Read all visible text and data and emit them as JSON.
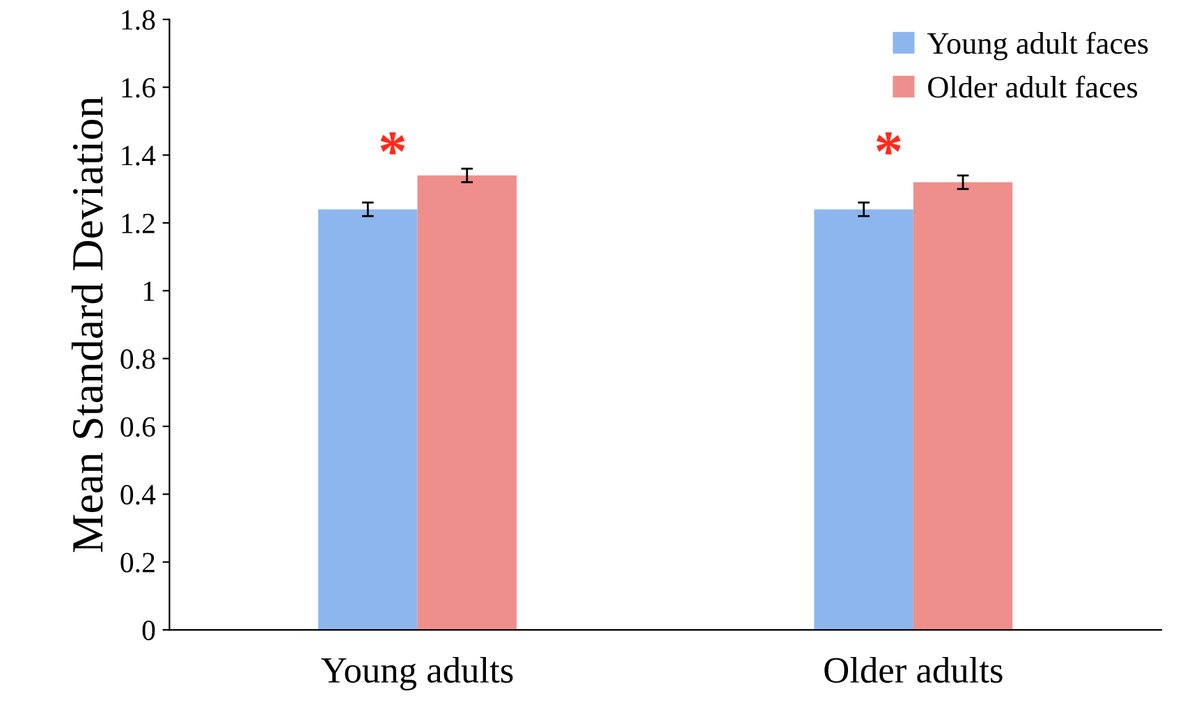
{
  "chart_data": {
    "type": "bar",
    "ylabel": "Mean Standard Deviation",
    "categories": [
      "Young adults",
      "Older adults"
    ],
    "series": [
      {
        "name": "Young adult faces",
        "color": "#8db6ee",
        "values": [
          1.24,
          1.24
        ],
        "errors": [
          0.02,
          0.02
        ]
      },
      {
        "name": "Older adult faces",
        "color": "#ee8f8c",
        "values": [
          1.34,
          1.32
        ],
        "errors": [
          0.02,
          0.02
        ]
      }
    ],
    "annotations": [
      "*",
      "*"
    ],
    "ylim": [
      0,
      1.8
    ],
    "yticks": [
      0,
      0.2,
      0.4,
      0.6,
      0.8,
      1,
      1.2,
      1.4,
      1.6,
      1.8
    ],
    "grid": false,
    "legend": "top right"
  }
}
